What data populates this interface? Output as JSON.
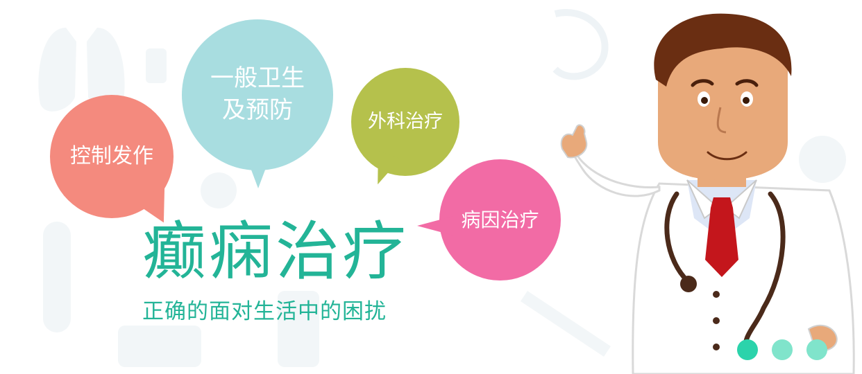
{
  "colors": {
    "bubble_coral": "#f48a7e",
    "bubble_aqua": "#a8dde0",
    "bubble_olive": "#b5c14c",
    "bubble_pink": "#f26ba5",
    "title_green": "#23b497",
    "dot_dark": "#2bd3ab",
    "dot_light": "#80e4cb"
  },
  "bubbles": [
    {
      "label": "控制发作"
    },
    {
      "label": "一般卫生\n及预防"
    },
    {
      "label": "外科治疗"
    },
    {
      "label": "病因治疗"
    }
  ],
  "headline": {
    "title": "癫痫治疗",
    "subtitle": "正确的面对生活中的困扰"
  },
  "illustration": {
    "character": "doctor-cartoon",
    "background_icons": [
      "lungs-icon",
      "test-tube-icon",
      "syringe-icon",
      "stethoscope-icon",
      "molecule-icon",
      "iv-bag-icon",
      "virus-icon"
    ]
  },
  "carousel": {
    "dots": 3,
    "active_index": 0
  }
}
